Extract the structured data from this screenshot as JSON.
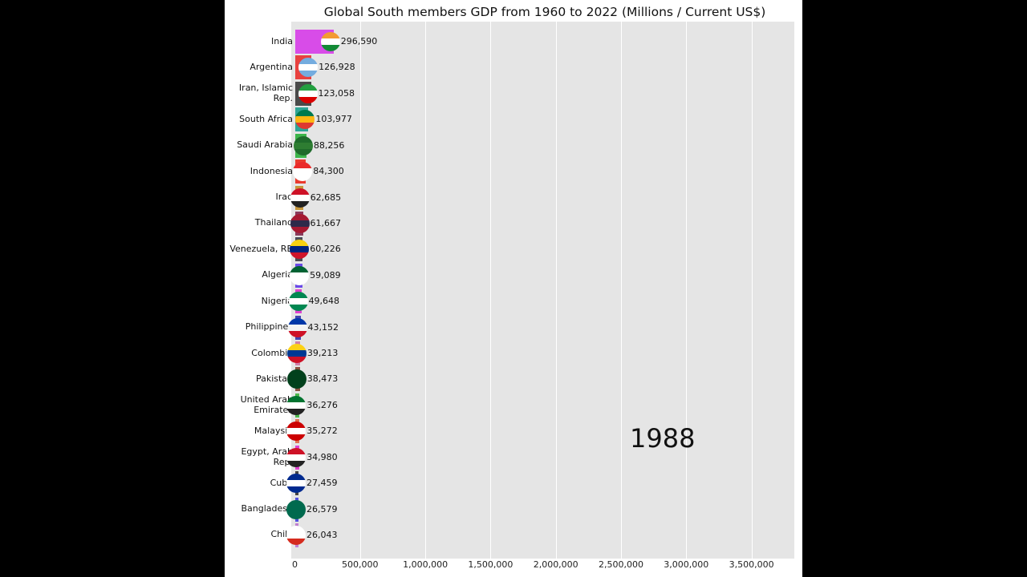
{
  "chart_data": {
    "type": "bar",
    "orientation": "horizontal",
    "title": "Global South members GDP from 1960 to 2022 (Millions / Current US$)",
    "year": "1988",
    "xlim": [
      0,
      3830000
    ],
    "xticks": [
      0,
      500000,
      1000000,
      1500000,
      2000000,
      2500000,
      3000000,
      3500000
    ],
    "xtick_labels": [
      "0",
      "500,000",
      "1,000,000",
      "1,500,000",
      "2,000,000",
      "2,500,000",
      "3,000,000",
      "3,500,000"
    ],
    "grid": true,
    "categories": [
      "India",
      "Argentina",
      "Iran, Islamic Rep.",
      "South Africa",
      "Saudi Arabia",
      "Indonesia",
      "Iraq",
      "Thailand",
      "Venezuela, RB",
      "Algeria",
      "Nigeria",
      "Philippines",
      "Colombia",
      "Pakistan",
      "United Arab Emirates",
      "Malaysia",
      "Egypt, Arab Rep.",
      "Cuba",
      "Bangladesh",
      "Chile"
    ],
    "values": [
      296590,
      126928,
      123058,
      103977,
      88256,
      84300,
      62685,
      61667,
      60226,
      59089,
      49648,
      43152,
      39213,
      38473,
      36276,
      35272,
      34980,
      27459,
      26579,
      26043
    ],
    "value_labels": [
      "296,590",
      "126,928",
      "123,058",
      "103,977",
      "88,256",
      "84,300",
      "62,685",
      "61,667",
      "60,226",
      "59,089",
      "49,648",
      "43,152",
      "39,213",
      "38,473",
      "36,276",
      "35,272",
      "34,980",
      "27,459",
      "26,579",
      "26,043"
    ],
    "bar_colors": [
      "#d84ce8",
      "#e8413f",
      "#4a4a4a",
      "#2fa596",
      "#3db54b",
      "#ea3a2e",
      "#c6963a",
      "#8a3a5a",
      "#4b4b55",
      "#6a4ae8",
      "#e040d0",
      "#4343b0",
      "#d17fa8",
      "#8a5040",
      "#4cb84c",
      "#e07050",
      "#e040d0",
      "#444444",
      "#5050e0",
      "#c07fd0"
    ],
    "flag_colors": [
      [
        "#f39a32",
        "#ffffff",
        "#138a36"
      ],
      [
        "#74acdf",
        "#ffffff",
        "#74acdf"
      ],
      [
        "#239f40",
        "#ffffff",
        "#da0000"
      ],
      [
        "#007a4d",
        "#ffb612",
        "#de3831"
      ],
      [
        "#1f6b2b",
        "#2e7d32",
        "#1f6b2b"
      ],
      [
        "#ea2a2a",
        "#ffffff",
        "#ffffff"
      ],
      [
        "#ce1126",
        "#ffffff",
        "#222222"
      ],
      [
        "#a51931",
        "#2d2a4a",
        "#a51931"
      ],
      [
        "#f8d210",
        "#00247d",
        "#cf142b"
      ],
      [
        "#006233",
        "#ffffff",
        "#ffffff"
      ],
      [
        "#008751",
        "#ffffff",
        "#008751"
      ],
      [
        "#0038a8",
        "#f4f4f4",
        "#ce1126"
      ],
      [
        "#fcd116",
        "#003893",
        "#ce1126"
      ],
      [
        "#01411c",
        "#01411c",
        "#01411c"
      ],
      [
        "#00732f",
        "#ffffff",
        "#222222"
      ],
      [
        "#cc0001",
        "#ffffff",
        "#cc0001"
      ],
      [
        "#ce1126",
        "#ffffff",
        "#222222"
      ],
      [
        "#002a8f",
        "#ffffff",
        "#002a8f"
      ],
      [
        "#006a4e",
        "#006a4e",
        "#006a4e"
      ],
      [
        "#ffffff",
        "#ffffff",
        "#d52b1e"
      ]
    ]
  }
}
